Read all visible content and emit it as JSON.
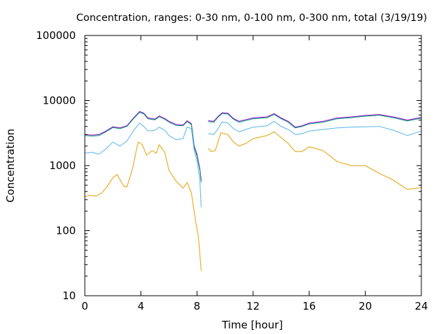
{
  "chart_data": {
    "type": "line",
    "title": "Concentration, ranges: 0-30 nm, 0-100 nm, 0-300 nm, total (3/19/19)",
    "xlabel": "Time [hour]",
    "ylabel": "Concentration",
    "xlim": [
      0,
      24
    ],
    "ylim": [
      10,
      100000
    ],
    "yscale": "log",
    "grid": false,
    "legend": "none",
    "x_ticks": [
      0,
      4,
      8,
      12,
      16,
      20,
      24
    ],
    "x_tick_labels": [
      "0",
      "4",
      "8",
      "12",
      "16",
      "20",
      "24"
    ],
    "y_ticks": [
      10,
      100,
      1000,
      10000,
      100000
    ],
    "y_tick_labels": [
      "10",
      "100",
      "1000",
      "10000",
      "100000"
    ],
    "series": [
      {
        "color": "#9400d3",
        "segments": [
          [
            [
              0,
              3000
            ],
            [
              0.5,
              2950
            ],
            [
              1,
              3000
            ],
            [
              1.5,
              3400
            ],
            [
              2,
              3950
            ],
            [
              2.5,
              3800
            ],
            [
              3,
              4100
            ],
            [
              3.5,
              5500
            ],
            [
              3.9,
              6800
            ],
            [
              4.2,
              6400
            ],
            [
              4.5,
              5400
            ],
            [
              5,
              5200
            ],
            [
              5.3,
              5800
            ],
            [
              5.7,
              5300
            ],
            [
              6,
              4800
            ],
            [
              6.5,
              4300
            ],
            [
              7,
              4200
            ],
            [
              7.3,
              4900
            ],
            [
              7.6,
              4400
            ],
            [
              7.8,
              2000
            ],
            [
              8,
              1500
            ],
            [
              8.2,
              900
            ],
            [
              8.3,
              600
            ]
          ],
          [
            [
              8.8,
              4900
            ],
            [
              9.2,
              4800
            ],
            [
              9.5,
              5700
            ],
            [
              9.8,
              6500
            ],
            [
              10.2,
              6400
            ],
            [
              10.6,
              5300
            ],
            [
              11,
              4800
            ],
            [
              11.5,
              5100
            ],
            [
              12,
              5400
            ],
            [
              12.5,
              5500
            ],
            [
              13,
              5600
            ],
            [
              13.5,
              6300
            ],
            [
              14,
              5400
            ],
            [
              14.5,
              4800
            ],
            [
              15,
              3900
            ],
            [
              15.5,
              4100
            ],
            [
              16,
              4500
            ],
            [
              17,
              4800
            ],
            [
              18,
              5400
            ],
            [
              19,
              5600
            ],
            [
              20,
              5900
            ],
            [
              21,
              6100
            ],
            [
              22,
              5600
            ],
            [
              23,
              5000
            ],
            [
              24,
              5500
            ]
          ]
        ]
      },
      {
        "color": "#009e73",
        "segments": [
          [
            [
              0,
              2900
            ],
            [
              0.5,
              2850
            ],
            [
              1,
              2900
            ],
            [
              1.5,
              3300
            ],
            [
              2,
              3850
            ],
            [
              2.5,
              3700
            ],
            [
              3,
              4000
            ],
            [
              3.5,
              5350
            ],
            [
              3.9,
              6600
            ],
            [
              4.2,
              6250
            ],
            [
              4.5,
              5250
            ],
            [
              5,
              5050
            ],
            [
              5.3,
              5650
            ],
            [
              5.7,
              5150
            ],
            [
              6,
              4650
            ],
            [
              6.5,
              4150
            ],
            [
              7,
              4100
            ],
            [
              7.3,
              4750
            ],
            [
              7.6,
              4250
            ],
            [
              7.8,
              1900
            ],
            [
              8,
              1400
            ],
            [
              8.2,
              850
            ],
            [
              8.3,
              550
            ]
          ],
          [
            [
              8.8,
              4750
            ],
            [
              9.2,
              4650
            ],
            [
              9.5,
              5550
            ],
            [
              9.8,
              6300
            ],
            [
              10.2,
              6200
            ],
            [
              10.6,
              5150
            ],
            [
              11,
              4650
            ],
            [
              11.5,
              4950
            ],
            [
              12,
              5250
            ],
            [
              12.5,
              5350
            ],
            [
              13,
              5450
            ],
            [
              13.5,
              6100
            ],
            [
              14,
              5250
            ],
            [
              14.5,
              4650
            ],
            [
              15,
              3800
            ],
            [
              15.5,
              4000
            ],
            [
              16,
              4350
            ],
            [
              17,
              4650
            ],
            [
              18,
              5250
            ],
            [
              19,
              5450
            ],
            [
              20,
              5750
            ],
            [
              21,
              5950
            ],
            [
              22,
              5450
            ],
            [
              23,
              4850
            ],
            [
              24,
              5350
            ]
          ]
        ]
      },
      {
        "color": "#56b4e9",
        "segments": [
          [
            [
              0,
              1550
            ],
            [
              0.5,
              1600
            ],
            [
              1,
              1500
            ],
            [
              1.5,
              1800
            ],
            [
              2,
              2300
            ],
            [
              2.5,
              2000
            ],
            [
              3,
              2400
            ],
            [
              3.5,
              3500
            ],
            [
              3.9,
              4500
            ],
            [
              4.2,
              4000
            ],
            [
              4.5,
              3400
            ],
            [
              5,
              3500
            ],
            [
              5.3,
              3900
            ],
            [
              5.7,
              3500
            ],
            [
              6,
              2900
            ],
            [
              6.5,
              2500
            ],
            [
              7,
              2600
            ],
            [
              7.3,
              3900
            ],
            [
              7.6,
              3700
            ],
            [
              7.8,
              1700
            ],
            [
              8,
              1200
            ],
            [
              8.2,
              600
            ],
            [
              8.3,
              230
            ]
          ],
          [
            [
              8.8,
              3100
            ],
            [
              9.2,
              3000
            ],
            [
              9.5,
              3700
            ],
            [
              9.8,
              4700
            ],
            [
              10.2,
              4500
            ],
            [
              10.6,
              3700
            ],
            [
              11,
              3300
            ],
            [
              11.5,
              3600
            ],
            [
              12,
              3900
            ],
            [
              12.5,
              4000
            ],
            [
              13,
              4100
            ],
            [
              13.5,
              4800
            ],
            [
              14,
              4000
            ],
            [
              14.5,
              3600
            ],
            [
              15,
              3000
            ],
            [
              15.5,
              3100
            ],
            [
              16,
              3400
            ],
            [
              17,
              3600
            ],
            [
              18,
              3800
            ],
            [
              19,
              3900
            ],
            [
              20,
              3950
            ],
            [
              21,
              4000
            ],
            [
              22,
              3500
            ],
            [
              23,
              2900
            ],
            [
              24,
              3400
            ]
          ]
        ]
      },
      {
        "color": "#e69f00",
        "segments": [
          [
            [
              0,
              330
            ],
            [
              0.3,
              350
            ],
            [
              0.8,
              340
            ],
            [
              1.2,
              380
            ],
            [
              1.6,
              480
            ],
            [
              2,
              650
            ],
            [
              2.3,
              730
            ],
            [
              2.6,
              560
            ],
            [
              2.8,
              480
            ],
            [
              3,
              470
            ],
            [
              3.4,
              900
            ],
            [
              3.8,
              2300
            ],
            [
              4.1,
              2100
            ],
            [
              4.4,
              1450
            ],
            [
              4.8,
              1700
            ],
            [
              5.1,
              1550
            ],
            [
              5.3,
              2100
            ],
            [
              5.7,
              1600
            ],
            [
              6,
              850
            ],
            [
              6.5,
              580
            ],
            [
              7,
              450
            ],
            [
              7.3,
              550
            ],
            [
              7.6,
              380
            ],
            [
              7.9,
              140
            ],
            [
              8.1,
              80
            ],
            [
              8.3,
              24
            ]
          ],
          [
            [
              8.8,
              1850
            ],
            [
              9,
              1650
            ],
            [
              9.3,
              1700
            ],
            [
              9.7,
              3200
            ],
            [
              10.2,
              3000
            ],
            [
              10.6,
              2300
            ],
            [
              11,
              2000
            ],
            [
              11.5,
              2200
            ],
            [
              12,
              2600
            ],
            [
              13,
              2900
            ],
            [
              13.5,
              3300
            ],
            [
              14,
              2700
            ],
            [
              14.5,
              2200
            ],
            [
              15,
              1650
            ],
            [
              15.5,
              1650
            ],
            [
              16,
              1950
            ],
            [
              17,
              1700
            ],
            [
              18,
              1150
            ],
            [
              19,
              1000
            ],
            [
              20,
              1000
            ],
            [
              21,
              760
            ],
            [
              22,
              600
            ],
            [
              23,
              430
            ],
            [
              24,
              460
            ]
          ]
        ]
      }
    ]
  }
}
